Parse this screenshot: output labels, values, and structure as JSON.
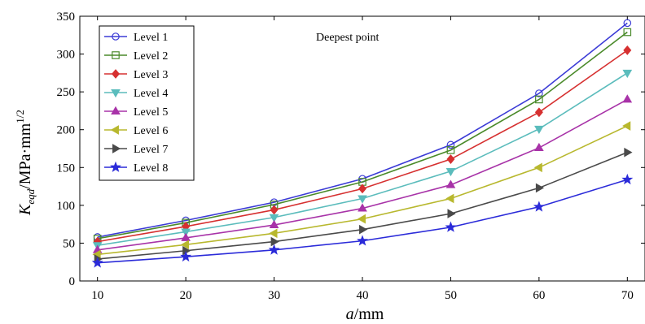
{
  "chart_data": {
    "type": "line",
    "title": "",
    "annotation": "Deepest point",
    "xlabel": "a/mm",
    "xlabel_parts": {
      "var": "a",
      "unit": "/mm"
    },
    "ylabel": "K_eqd/MPa·mm^1/2",
    "ylabel_parts": {
      "var": "K",
      "sub": "eqd",
      "unit": "/MPa·mm",
      "sup": "1/2"
    },
    "xlim": [
      8,
      72
    ],
    "ylim": [
      0,
      350
    ],
    "xticks": [
      10,
      20,
      30,
      40,
      50,
      60,
      70
    ],
    "yticks": [
      0,
      50,
      100,
      150,
      200,
      250,
      300,
      350
    ],
    "grid": false,
    "legend_position": "top-left",
    "x": [
      10,
      20,
      30,
      40,
      50,
      60,
      70
    ],
    "series": [
      {
        "name": "Level 1",
        "color": "#3b3bd6",
        "marker": "circle",
        "values": [
          58,
          80,
          104,
          135,
          180,
          248,
          341
        ]
      },
      {
        "name": "Level 2",
        "color": "#4a8a2a",
        "marker": "square",
        "values": [
          56,
          77,
          101,
          131,
          173,
          240,
          329
        ]
      },
      {
        "name": "Level 3",
        "color": "#d63030",
        "marker": "diamond",
        "values": [
          52,
          72,
          94,
          122,
          161,
          223,
          305
        ]
      },
      {
        "name": "Level 4",
        "color": "#5bbcbc",
        "marker": "triangle-down",
        "values": [
          47,
          65,
          84,
          109,
          145,
          201,
          275
        ]
      },
      {
        "name": "Level 5",
        "color": "#a833a8",
        "marker": "triangle-up",
        "values": [
          41,
          57,
          74,
          96,
          127,
          176,
          240
        ]
      },
      {
        "name": "Level 6",
        "color": "#b8b82e",
        "marker": "triangle-left",
        "values": [
          35,
          48,
          63,
          82,
          109,
          150,
          205
        ]
      },
      {
        "name": "Level 7",
        "color": "#4a4a4a",
        "marker": "triangle-right",
        "values": [
          29,
          40,
          52,
          68,
          89,
          123,
          170
        ]
      },
      {
        "name": "Level 8",
        "color": "#2b2bd9",
        "marker": "star",
        "values": [
          24,
          32,
          41,
          53,
          71,
          98,
          134
        ]
      }
    ]
  }
}
